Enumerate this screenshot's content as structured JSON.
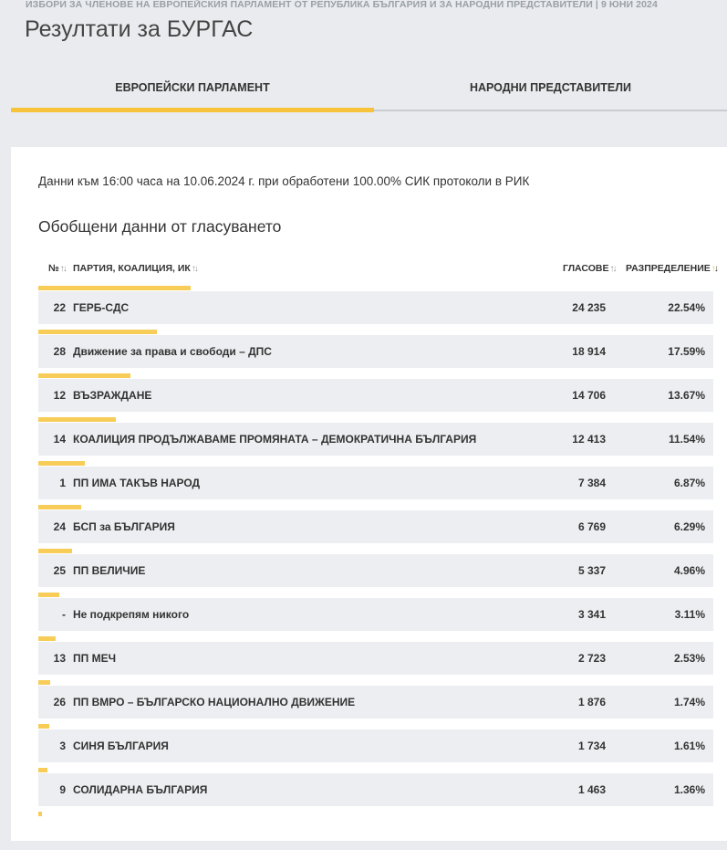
{
  "header": {
    "supertitle": "ИЗБОРИ ЗА ЧЛЕНОВЕ НА ЕВРОПЕЙСКИЯ ПАРЛАМЕНТ ОТ РЕПУБЛИКА БЪЛГАРИЯ И ЗА НАРОДНИ ПРЕДСТАВИТЕЛИ | 9 ЮНИ 2024",
    "title": "Резултати за БУРГАС"
  },
  "tabs": [
    {
      "label": "ЕВРОПЕЙСКИ ПАРЛАМЕНТ",
      "active": true
    },
    {
      "label": "НАРОДНИ ПРЕДСТАВИТЕЛИ",
      "active": false
    }
  ],
  "info": "Данни към 16:00 часа на 10.06.2024 г. при обработени 100.00% СИК протоколи в РИК",
  "section_title": "Обобщени данни от гласуването",
  "table": {
    "columns": {
      "num": "№",
      "party": "ПАРТИЯ, КОАЛИЦИЯ, ИК",
      "votes": "ГЛАСОВЕ",
      "share": "РАЗПРЕДЕЛЕНИЕ"
    },
    "rows": [
      {
        "num": "22",
        "party": "ГЕРБ-СДС",
        "votes": "24 235",
        "share": "22.54%",
        "bar": 22.54
      },
      {
        "num": "28",
        "party": "Движение за права и свободи – ДПС",
        "votes": "18 914",
        "share": "17.59%",
        "bar": 17.59
      },
      {
        "num": "12",
        "party": "ВЪЗРАЖДАНЕ",
        "votes": "14 706",
        "share": "13.67%",
        "bar": 13.67
      },
      {
        "num": "14",
        "party": "КОАЛИЦИЯ ПРОДЪЛЖАВАМЕ ПРОМЯНАТА – ДЕМОКРАТИЧНА БЪЛГАРИЯ",
        "votes": "12 413",
        "share": "11.54%",
        "bar": 11.54
      },
      {
        "num": "1",
        "party": "ПП ИМА ТАКЪВ НАРОД",
        "votes": "7 384",
        "share": "6.87%",
        "bar": 6.87
      },
      {
        "num": "24",
        "party": "БСП за БЪЛГАРИЯ",
        "votes": "6 769",
        "share": "6.29%",
        "bar": 6.29
      },
      {
        "num": "25",
        "party": "ПП ВЕЛИЧИЕ",
        "votes": "5 337",
        "share": "4.96%",
        "bar": 4.96
      },
      {
        "num": "-",
        "party": "Не подкрепям никого",
        "votes": "3 341",
        "share": "3.11%",
        "bar": 3.11
      },
      {
        "num": "13",
        "party": "ПП МЕЧ",
        "votes": "2 723",
        "share": "2.53%",
        "bar": 2.53
      },
      {
        "num": "26",
        "party": "ПП ВМРО – БЪЛГАРСКО НАЦИОНАЛНО ДВИЖЕНИЕ",
        "votes": "1 876",
        "share": "1.74%",
        "bar": 1.74
      },
      {
        "num": "3",
        "party": "СИНЯ БЪЛГАРИЯ",
        "votes": "1 734",
        "share": "1.61%",
        "bar": 1.61
      },
      {
        "num": "9",
        "party": "СОЛИДАРНА БЪЛГАРИЯ",
        "votes": "1 463",
        "share": "1.36%",
        "bar": 1.36
      },
      {
        "num": "",
        "party": "",
        "votes": "",
        "share": "",
        "bar": 0.6
      }
    ]
  },
  "colors": {
    "accent": "#f6c33a",
    "row_bg": "#eceef1",
    "page_bg": "#e9ebee"
  }
}
